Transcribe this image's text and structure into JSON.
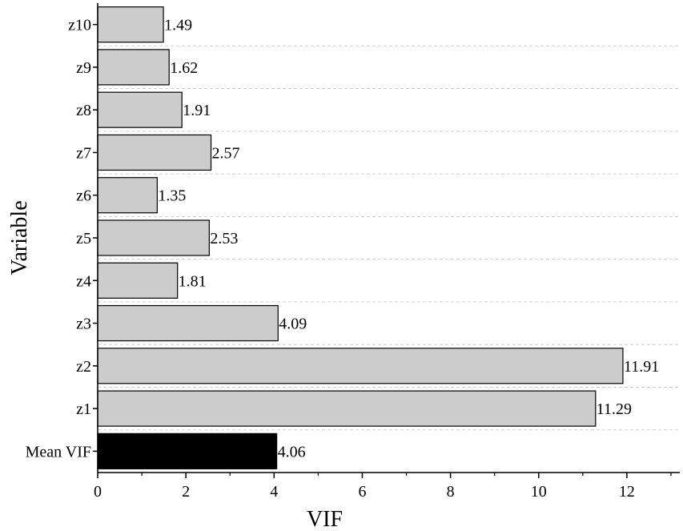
{
  "chart_data": {
    "type": "bar",
    "orientation": "horizontal",
    "categories": [
      "Mean VIF",
      "z1",
      "z2",
      "z3",
      "z4",
      "z5",
      "z6",
      "z7",
      "z8",
      "z9",
      "z10"
    ],
    "values": [
      4.06,
      11.29,
      11.91,
      4.09,
      1.81,
      2.53,
      1.35,
      2.57,
      1.91,
      1.62,
      1.49
    ],
    "value_labels": [
      "4.06",
      "11.29",
      "11.91",
      "4.09",
      "1.81",
      "2.53",
      "1.35",
      "2.57",
      "1.91",
      "1.62",
      "1.49"
    ],
    "title": "",
    "xlabel": "VIF",
    "ylabel": "Variable",
    "xlim": [
      0,
      13.2
    ],
    "xticks": [
      0,
      2,
      4,
      6,
      8,
      10,
      12
    ],
    "grid": "horizontal dashed",
    "legend": "none",
    "bar_colors": {
      "default": "#cccccc",
      "Mean VIF": "#000000",
      "edge": "#000000"
    }
  }
}
